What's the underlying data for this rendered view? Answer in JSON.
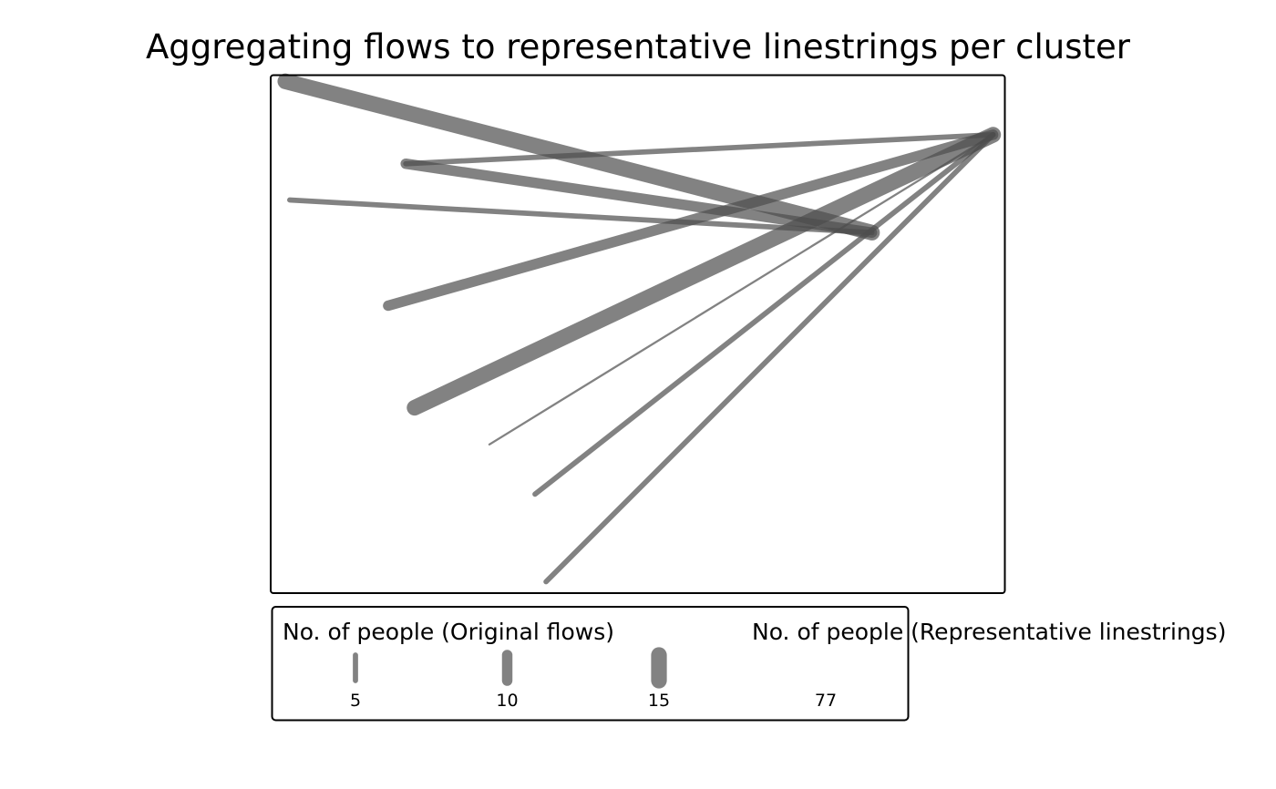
{
  "chart_data": {
    "type": "line",
    "title": "Aggregating flows to representative linestrings per cluster",
    "xlabel": "",
    "ylabel": "",
    "xlim": [
      0,
      100
    ],
    "ylim": [
      0,
      100
    ],
    "grid": false,
    "line_color": "#4d4d4d",
    "frame_color": "#000000",
    "legend_placement": "bottom",
    "flows": [
      {
        "x": [
          2.0,
          81.9
        ],
        "y": [
          98.8,
          69.6
        ],
        "people": 15
      },
      {
        "x": [
          18.4,
          81.9
        ],
        "y": [
          82.9,
          69.6
        ],
        "people": 10
      },
      {
        "x": [
          2.6,
          81.9
        ],
        "y": [
          75.9,
          69.6
        ],
        "people": 5
      },
      {
        "x": [
          18.4,
          98.4
        ],
        "y": [
          82.9,
          88.5
        ],
        "people": 5
      },
      {
        "x": [
          16.0,
          98.4
        ],
        "y": [
          55.5,
          88.5
        ],
        "people": 10
      },
      {
        "x": [
          19.6,
          98.4
        ],
        "y": [
          35.8,
          88.5
        ],
        "people": 15
      },
      {
        "x": [
          29.8,
          98.4
        ],
        "y": [
          28.7,
          88.5
        ],
        "people": 2
      },
      {
        "x": [
          36.0,
          98.4
        ],
        "y": [
          19.1,
          88.5
        ],
        "people": 5
      },
      {
        "x": [
          37.5,
          98.4
        ],
        "y": [
          2.2,
          88.5
        ],
        "people": 5
      }
    ],
    "legends": [
      {
        "title": "No. of people (Original flows)",
        "entries": [
          {
            "label": "5",
            "value": 5
          },
          {
            "label": "10",
            "value": 10
          },
          {
            "label": "15",
            "value": 15
          }
        ]
      },
      {
        "title": "No. of people (Representative linestrings)",
        "entries": [
          {
            "label": "77",
            "value": 77
          }
        ]
      }
    ]
  }
}
